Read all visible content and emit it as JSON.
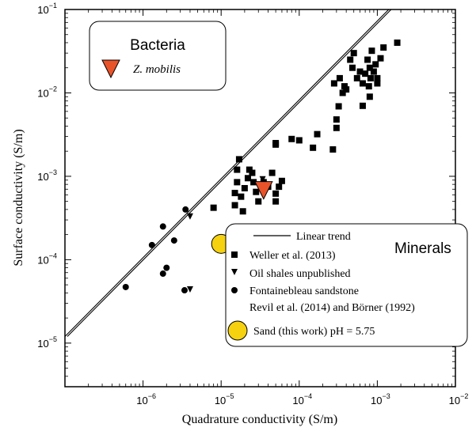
{
  "chart_data": {
    "type": "scatter",
    "x_scale": "log",
    "y_scale": "log",
    "xlabel": "Quadrature conductivity (S/m)",
    "ylabel": "Surface conductivity (S/m)",
    "xlim": [
      1e-07,
      0.01
    ],
    "ylim": [
      3e-06,
      0.1
    ],
    "x_ticks": [
      {
        "value": 1e-06,
        "base": "10",
        "exp": "−6"
      },
      {
        "value": 1e-05,
        "base": "10",
        "exp": "−5"
      },
      {
        "value": 0.0001,
        "base": "10",
        "exp": "−4"
      },
      {
        "value": 0.001,
        "base": "10",
        "exp": "−3"
      },
      {
        "value": 0.01,
        "base": "10",
        "exp": "−2"
      }
    ],
    "y_ticks": [
      {
        "value": 1e-05,
        "base": "10",
        "exp": "−5"
      },
      {
        "value": 0.0001,
        "base": "10",
        "exp": "−4"
      },
      {
        "value": 0.001,
        "base": "10",
        "exp": "−3"
      },
      {
        "value": 0.01,
        "base": "10",
        "exp": "−2"
      },
      {
        "value": 0.1,
        "base": "10",
        "exp": "−1"
      }
    ],
    "linear_trend": {
      "name": "Linear trend",
      "x": [
        1e-07,
        0.0014
      ],
      "y": [
        1.2e-05,
        0.1
      ]
    },
    "series": [
      {
        "name": "Weller et al. (2013)",
        "marker": "square",
        "color": "#000000",
        "points": [
          [
            8e-06,
            0.00042
          ],
          [
            1.5e-05,
            0.00045
          ],
          [
            1.5e-05,
            0.00063
          ],
          [
            1.6e-05,
            0.00085
          ],
          [
            1.6e-05,
            0.0012
          ],
          [
            1.7e-05,
            0.0016
          ],
          [
            1.8e-05,
            0.00057
          ],
          [
            1.9e-05,
            0.00038
          ],
          [
            2e-05,
            0.00072
          ],
          [
            2.2e-05,
            0.00095
          ],
          [
            2.3e-05,
            0.0012
          ],
          [
            2.5e-05,
            0.0011
          ],
          [
            2.6e-05,
            0.00085
          ],
          [
            2.8e-05,
            0.00065
          ],
          [
            3e-05,
            0.0005
          ],
          [
            3.5e-05,
            0.00085
          ],
          [
            4e-05,
            0.00075
          ],
          [
            4.5e-05,
            0.0011
          ],
          [
            5e-05,
            0.00062
          ],
          [
            5e-05,
            0.0005
          ],
          [
            5.5e-05,
            0.00075
          ],
          [
            6e-05,
            0.00088
          ],
          [
            5e-05,
            0.0024
          ],
          [
            5e-05,
            0.0025
          ],
          [
            8e-05,
            0.0028
          ],
          [
            0.0001,
            0.0027
          ],
          [
            0.00015,
            0.0022
          ],
          [
            0.00017,
            0.0032
          ],
          [
            0.00027,
            0.0021
          ],
          [
            0.0003,
            0.0038
          ],
          [
            0.0003,
            0.0048
          ],
          [
            0.00032,
            0.0069
          ],
          [
            0.00028,
            0.013
          ],
          [
            0.00033,
            0.015
          ],
          [
            0.00036,
            0.01
          ],
          [
            0.00038,
            0.012
          ],
          [
            0.0004,
            0.011
          ],
          [
            0.00045,
            0.025
          ],
          [
            0.00048,
            0.02
          ],
          [
            0.0005,
            0.03
          ],
          [
            0.00055,
            0.015
          ],
          [
            0.0006,
            0.018
          ],
          [
            0.00065,
            0.007
          ],
          [
            0.00065,
            0.013
          ],
          [
            0.0007,
            0.017
          ],
          [
            0.00075,
            0.025
          ],
          [
            0.00078,
            0.012
          ],
          [
            0.0008,
            0.009
          ],
          [
            0.0008,
            0.02
          ],
          [
            0.00082,
            0.015
          ],
          [
            0.00085,
            0.032
          ],
          [
            0.0009,
            0.018
          ],
          [
            0.00095,
            0.022
          ],
          [
            0.001,
            0.015
          ],
          [
            0.001,
            0.013
          ],
          [
            0.0011,
            0.026
          ],
          [
            0.0012,
            0.035
          ],
          [
            0.0018,
            0.04
          ]
        ]
      },
      {
        "name": "Oil shales unpublished",
        "marker": "triangle-down",
        "color": "#000000",
        "points": [
          [
            4e-06,
            0.00033
          ],
          [
            4e-06,
            4.4e-05
          ],
          [
            3.4e-05,
            0.00092
          ]
        ]
      },
      {
        "name": "Fontainebleau sandstone",
        "name_line2": "Revil et al. (2014) and Börner (1992)",
        "marker": "circle",
        "color": "#000000",
        "points": [
          [
            6e-07,
            4.7e-05
          ],
          [
            1.3e-06,
            0.00015
          ],
          [
            1.8e-06,
            0.00025
          ],
          [
            1.8e-06,
            6.8e-05
          ],
          [
            2e-06,
            8e-05
          ],
          [
            2.5e-06,
            0.00017
          ],
          [
            3.5e-06,
            0.0004
          ],
          [
            3.4e-06,
            4.3e-05
          ]
        ]
      },
      {
        "name": "Sand (this work) pH = 5.75",
        "marker": "big-circle",
        "color": "#f5d10f",
        "points": [
          [
            1e-05,
            0.000155
          ]
        ]
      },
      {
        "name": "Z. mobilis",
        "marker": "big-triangle-down",
        "color": "#e8532a",
        "points": [
          [
            3.5e-05,
            0.00068
          ]
        ]
      }
    ],
    "legend_bacteria": {
      "title": "Bacteria",
      "entry": "Z. mobilis"
    },
    "legend_minerals": {
      "title": "Minerals",
      "trend": "Linear trend",
      "weller": "Weller et al. (2013)",
      "oil": "Oil shales unpublished",
      "fontainebleau": "Fontainebleau sandstone",
      "revil": "Revil et al. (2014) and Börner (1992)",
      "sand": "Sand (this work) pH = 5.75"
    }
  }
}
